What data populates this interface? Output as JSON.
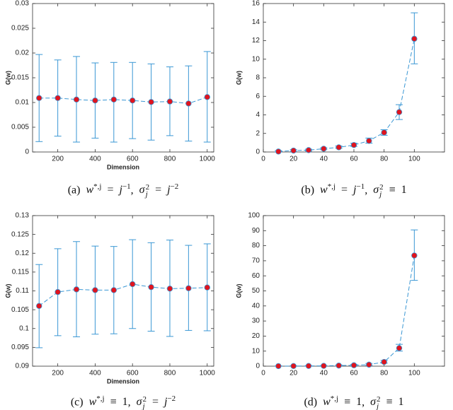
{
  "chart_data": [
    {
      "type": "errorbar",
      "ylabel": "G(w)",
      "xlabel": "Dimension",
      "caption": [
        "(a)",
        "w",
        "*,j",
        "=",
        "j",
        "−1",
        ",",
        "σ",
        "2",
        "j",
        "=",
        "j",
        "−2"
      ],
      "x": [
        100,
        200,
        300,
        400,
        500,
        600,
        700,
        800,
        900,
        1000
      ],
      "values": [
        0.0109,
        0.0109,
        0.0106,
        0.0104,
        0.0106,
        0.0104,
        0.0101,
        0.0102,
        0.0098,
        0.0111
      ],
      "lower": [
        0.0021,
        0.0032,
        0.002,
        0.0028,
        0.002,
        0.0027,
        0.0024,
        0.0033,
        0.0022,
        0.002
      ],
      "upper": [
        0.0197,
        0.0186,
        0.0193,
        0.018,
        0.0181,
        0.0181,
        0.0178,
        0.0172,
        0.0174,
        0.0203
      ],
      "color": "#3a97d4",
      "marker_color": "#e0141e",
      "xlim": [
        65,
        1035
      ],
      "xticks": [
        200,
        400,
        600,
        800,
        1000
      ],
      "ylim": [
        0,
        0.03
      ],
      "yticks": [
        0,
        0.005,
        0.01,
        0.015,
        0.02,
        0.025,
        0.03
      ]
    },
    {
      "type": "errorbar",
      "ylabel": "G(w)",
      "caption": [
        "(b)",
        "w",
        "*,j",
        "=",
        "j",
        "−1",
        ",",
        "σ",
        "2",
        "j",
        "≡",
        "1"
      ],
      "x": [
        10,
        20,
        30,
        40,
        50,
        60,
        70,
        80,
        90,
        100
      ],
      "values": [
        0.05,
        0.15,
        0.2,
        0.35,
        0.5,
        0.75,
        1.2,
        2.1,
        4.3,
        12.2
      ],
      "lower": [
        0,
        0.05,
        0.1,
        0.25,
        0.4,
        0.6,
        0.95,
        1.8,
        3.5,
        9.5
      ],
      "upper": [
        0.15,
        0.25,
        0.3,
        0.45,
        0.65,
        0.95,
        1.5,
        2.4,
        5.1,
        15
      ],
      "color": "#3a97d4",
      "marker_color": "#e0141e",
      "xlim": [
        0,
        120
      ],
      "xticks": [
        0,
        20,
        40,
        60,
        80,
        100
      ],
      "ylim": [
        0,
        16
      ],
      "yticks": [
        0,
        2,
        4,
        6,
        8,
        10,
        12,
        14,
        16
      ]
    },
    {
      "type": "errorbar",
      "ylabel": "G(w)",
      "xlabel": "Dimension",
      "caption": [
        "(c)",
        "w",
        "*,j",
        "≡",
        "1",
        ",",
        "σ",
        "2",
        "j",
        "=",
        "j",
        "−2"
      ],
      "x": [
        100,
        200,
        300,
        400,
        500,
        600,
        700,
        800,
        900,
        1000
      ],
      "values": [
        0.106,
        0.1097,
        0.1104,
        0.1102,
        0.1102,
        0.1118,
        0.111,
        0.1106,
        0.1107,
        0.1109
      ],
      "lower": [
        0.0949,
        0.0981,
        0.0978,
        0.0985,
        0.0986,
        0.1,
        0.0993,
        0.0979,
        0.0995,
        0.0994
      ],
      "upper": [
        0.117,
        0.1212,
        0.1231,
        0.1219,
        0.1218,
        0.1236,
        0.1228,
        0.1235,
        0.1221,
        0.1225
      ],
      "color": "#3a97d4",
      "marker_color": "#e0141e",
      "xlim": [
        65,
        1035
      ],
      "xticks": [
        200,
        400,
        600,
        800,
        1000
      ],
      "ylim": [
        0.09,
        0.13
      ],
      "yticks": [
        0.09,
        0.095,
        0.1,
        0.105,
        0.11,
        0.115,
        0.12,
        0.125,
        0.13
      ]
    },
    {
      "type": "errorbar",
      "ylabel": "G(w)",
      "caption": [
        "(d)",
        "w",
        "*,j",
        "≡",
        "1",
        ",",
        "σ",
        "2",
        "j",
        "≡",
        "1"
      ],
      "x": [
        10,
        20,
        30,
        40,
        50,
        60,
        70,
        80,
        90,
        100
      ],
      "values": [
        0.05,
        0.1,
        0.15,
        0.2,
        0.4,
        0.6,
        1,
        2.8,
        12,
        73.5
      ],
      "lower": [
        0,
        0,
        0,
        0.05,
        0.15,
        0.3,
        0.6,
        2,
        10,
        57
      ],
      "upper": [
        0.2,
        0.3,
        0.35,
        0.4,
        0.8,
        1.2,
        1.8,
        3.8,
        14.5,
        90.5
      ],
      "color": "#3a97d4",
      "marker_color": "#e0141e",
      "xlim": [
        0,
        120
      ],
      "xticks": [
        0,
        20,
        40,
        60,
        80,
        100
      ],
      "ylim": [
        0,
        100
      ],
      "yticks": [
        0,
        10,
        20,
        30,
        40,
        50,
        60,
        70,
        80,
        90,
        100
      ]
    }
  ]
}
